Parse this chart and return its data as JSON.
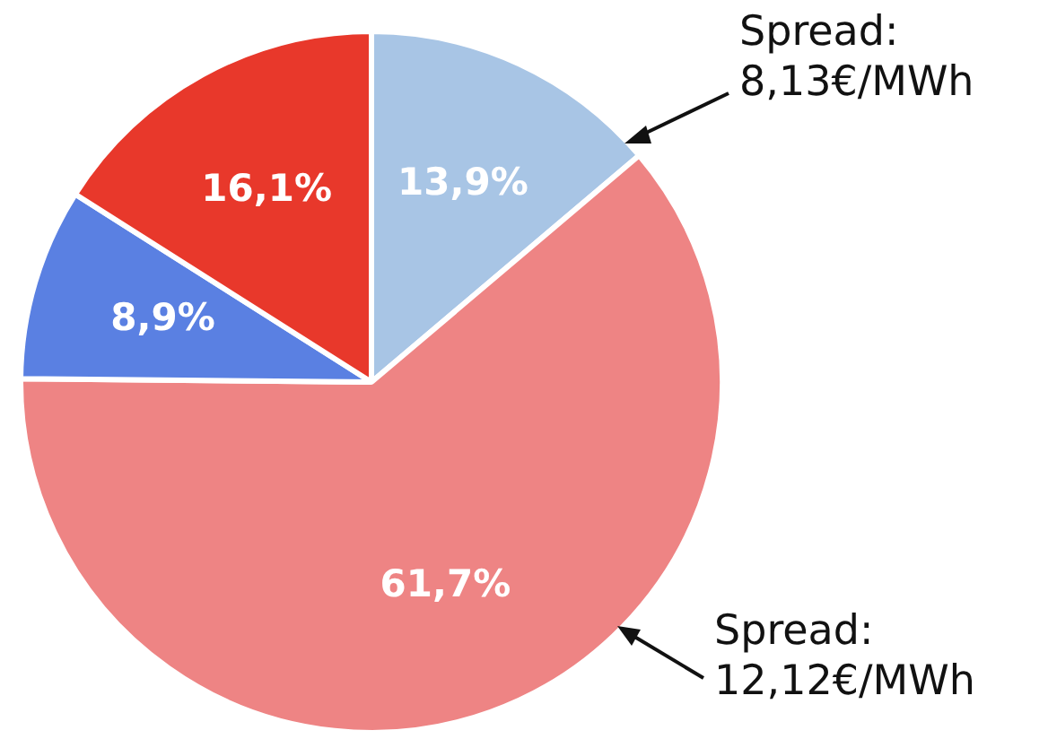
{
  "chart_data": {
    "type": "pie",
    "categories": [
      null,
      null,
      null,
      null
    ],
    "values": [
      13.9,
      61.7,
      8.9,
      16.1
    ],
    "colors": [
      "#a8c5e5",
      "#ee8484",
      "#5a80e2",
      "#e8382b"
    ],
    "value_labels": [
      "13,9%",
      "61,7%",
      "8,9%",
      "16,1%"
    ],
    "legend": false,
    "annotations": [
      "Spread:\n8,13€/MWh",
      "Spread:\n12,12€/MWh"
    ]
  }
}
